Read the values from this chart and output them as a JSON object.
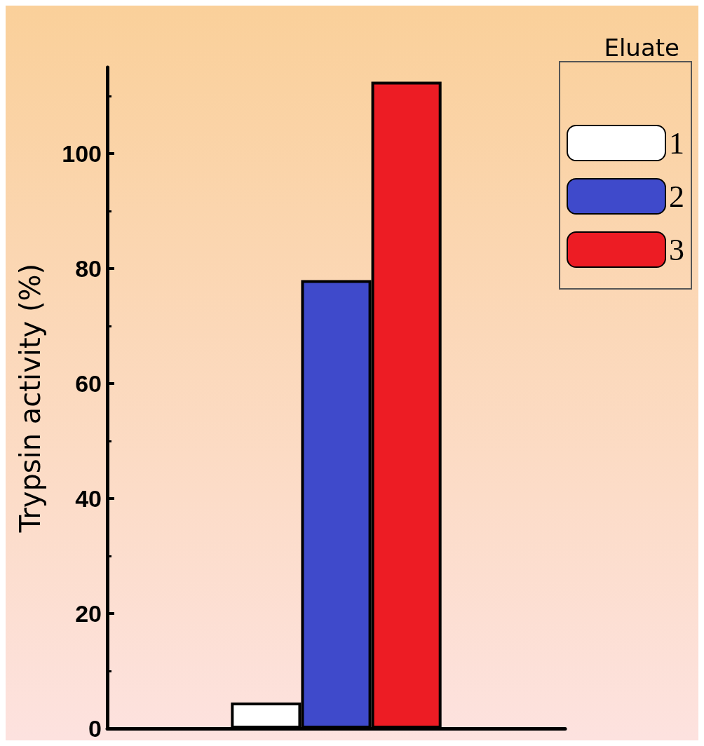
{
  "chart_data": {
    "type": "bar",
    "ylabel": "Trypsin activity (%)",
    "legend_title": "Eluate",
    "categories": [
      null
    ],
    "series": [
      {
        "name": "1",
        "color": "#ffffff",
        "values": [
          4.5
        ]
      },
      {
        "name": "2",
        "color": "#3f4acb",
        "values": [
          78
        ]
      },
      {
        "name": "3",
        "color": "#ed1c24",
        "values": [
          112.5
        ]
      }
    ],
    "ylim": [
      0,
      115
    ],
    "yticks": [
      0,
      20,
      40,
      60,
      80,
      100
    ],
    "grid": false,
    "legend": "top right"
  }
}
